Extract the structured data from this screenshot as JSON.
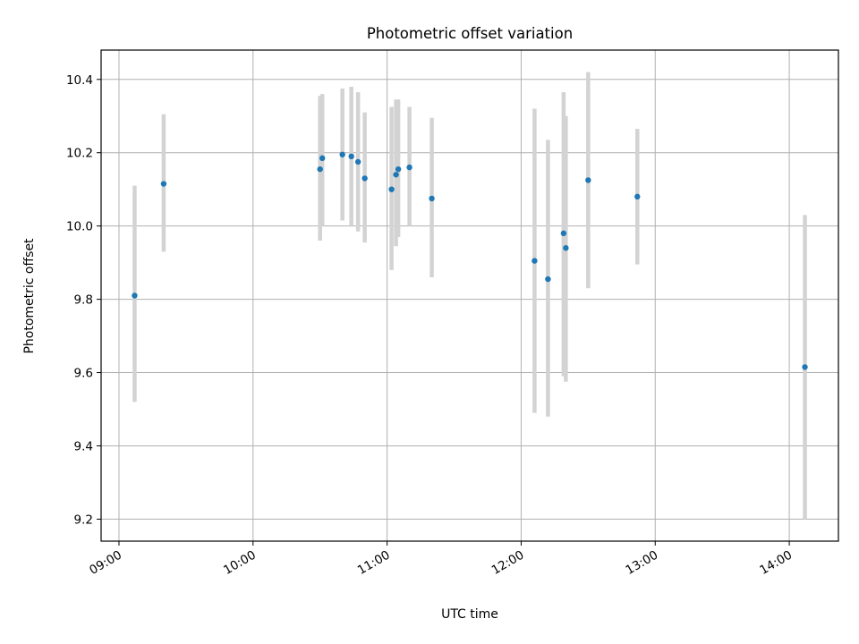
{
  "chart_data": {
    "type": "scatter",
    "title": "Photometric offset variation",
    "xlabel": "UTC time",
    "ylabel": "Photometric offset",
    "x_tick_labels": [
      "09:00",
      "10:00",
      "11:00",
      "12:00",
      "13:00",
      "14:00"
    ],
    "x_ticks": [
      "09:00",
      "10:00",
      "11:00",
      "12:00",
      "13:00",
      "14:00"
    ],
    "xlim": [
      "08:52",
      "14:22"
    ],
    "y_tick_labels": [
      "9.2",
      "9.4",
      "9.6",
      "9.8",
      "10.0",
      "10.2",
      "10.4"
    ],
    "y_ticks": [
      9.2,
      9.4,
      9.6,
      9.8,
      10.0,
      10.2,
      10.4
    ],
    "ylim": [
      9.14,
      10.48
    ],
    "grid": true,
    "point_color": "#1f77b4",
    "errorbar_color": "#d3d3d3",
    "series": [
      {
        "points": [
          {
            "x": "09:07",
            "y": 9.81,
            "ylow": 9.52,
            "yhigh": 10.11
          },
          {
            "x": "09:20",
            "y": 10.115,
            "ylow": 9.93,
            "yhigh": 10.305
          },
          {
            "x": "10:30",
            "y": 10.155,
            "ylow": 9.96,
            "yhigh": 10.355
          },
          {
            "x": "10:31",
            "y": 10.185,
            "ylow": 10.0,
            "yhigh": 10.36
          },
          {
            "x": "10:40",
            "y": 10.195,
            "ylow": 10.015,
            "yhigh": 10.375
          },
          {
            "x": "10:44",
            "y": 10.19,
            "ylow": 10.0,
            "yhigh": 10.38
          },
          {
            "x": "10:47",
            "y": 10.175,
            "ylow": 9.985,
            "yhigh": 10.365
          },
          {
            "x": "10:50",
            "y": 10.13,
            "ylow": 9.955,
            "yhigh": 10.31
          },
          {
            "x": "11:02",
            "y": 10.1,
            "ylow": 9.88,
            "yhigh": 10.325
          },
          {
            "x": "11:04",
            "y": 10.14,
            "ylow": 9.945,
            "yhigh": 10.345
          },
          {
            "x": "11:05",
            "y": 10.155,
            "ylow": 9.97,
            "yhigh": 10.345
          },
          {
            "x": "11:10",
            "y": 10.16,
            "ylow": 10.0,
            "yhigh": 10.325
          },
          {
            "x": "11:20",
            "y": 10.075,
            "ylow": 9.86,
            "yhigh": 10.295
          },
          {
            "x": "12:06",
            "y": 9.905,
            "ylow": 9.49,
            "yhigh": 10.32
          },
          {
            "x": "12:12",
            "y": 9.855,
            "ylow": 9.48,
            "yhigh": 10.235
          },
          {
            "x": "12:19",
            "y": 9.98,
            "ylow": 9.59,
            "yhigh": 10.365
          },
          {
            "x": "12:20",
            "y": 9.94,
            "ylow": 9.575,
            "yhigh": 10.3
          },
          {
            "x": "12:30",
            "y": 10.125,
            "ylow": 9.83,
            "yhigh": 10.42
          },
          {
            "x": "12:52",
            "y": 10.08,
            "ylow": 9.895,
            "yhigh": 10.265
          },
          {
            "x": "14:07",
            "y": 9.615,
            "ylow": 9.2,
            "yhigh": 10.03
          }
        ]
      }
    ]
  }
}
